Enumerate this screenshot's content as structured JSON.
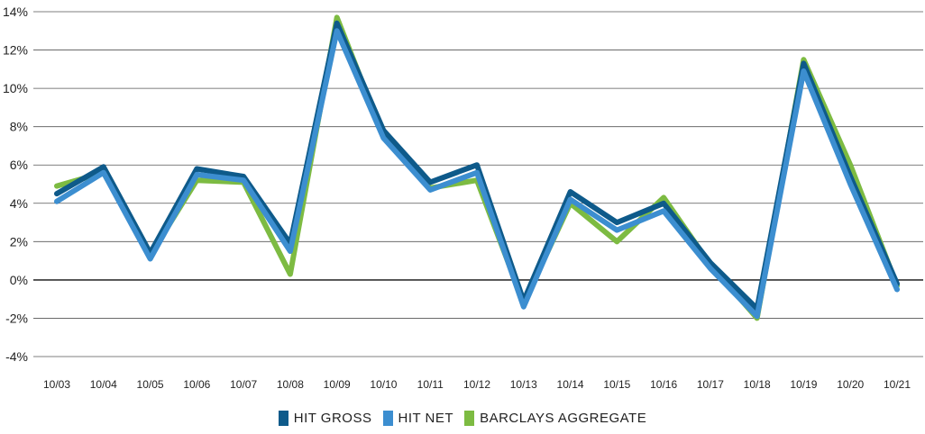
{
  "chart_data": {
    "type": "line",
    "categories": [
      "10/03",
      "10/04",
      "10/05",
      "10/06",
      "10/07",
      "10/08",
      "10/09",
      "10/10",
      "10/11",
      "10/12",
      "10/13",
      "10/14",
      "10/15",
      "10/16",
      "10/17",
      "10/18",
      "10/19",
      "10/20",
      "10/21"
    ],
    "ylim": [
      -4,
      14
    ],
    "yticks": [
      -4,
      -2,
      0,
      2,
      4,
      6,
      8,
      10,
      12,
      14
    ],
    "ytick_labels": [
      "-4%",
      "-2%",
      "0%",
      "2%",
      "4%",
      "6%",
      "8%",
      "10%",
      "12%",
      "14%"
    ],
    "grid": true,
    "legend_position": "bottom-center",
    "series": [
      {
        "name": "BARCLAYS AGGREGATE",
        "color": "#7dbb42",
        "values": [
          4.9,
          5.6,
          1.3,
          5.2,
          5.1,
          0.3,
          13.7,
          7.5,
          4.8,
          5.2,
          -1.2,
          4.0,
          2.0,
          4.3,
          0.8,
          -2.0,
          11.5,
          6.0,
          -0.3
        ]
      },
      {
        "name": "HIT GROSS",
        "color": "#0e5a8a",
        "values": [
          4.5,
          5.9,
          1.4,
          5.8,
          5.4,
          1.9,
          13.4,
          7.8,
          5.1,
          6.0,
          -1.1,
          4.6,
          3.0,
          4.0,
          0.9,
          -1.5,
          11.3,
          5.4,
          -0.2
        ]
      },
      {
        "name": "HIT NET",
        "color": "#3c8ed0",
        "values": [
          4.1,
          5.6,
          1.1,
          5.5,
          5.2,
          1.5,
          13.0,
          7.4,
          4.7,
          5.6,
          -1.4,
          4.2,
          2.6,
          3.6,
          0.6,
          -1.9,
          10.9,
          5.0,
          -0.5
        ]
      }
    ],
    "legend": [
      {
        "label": "HIT GROSS",
        "color": "#0e5a8a"
      },
      {
        "label": "HIT NET",
        "color": "#3c8ed0"
      },
      {
        "label": "BARCLAYS AGGREGATE",
        "color": "#7dbb42"
      }
    ]
  }
}
